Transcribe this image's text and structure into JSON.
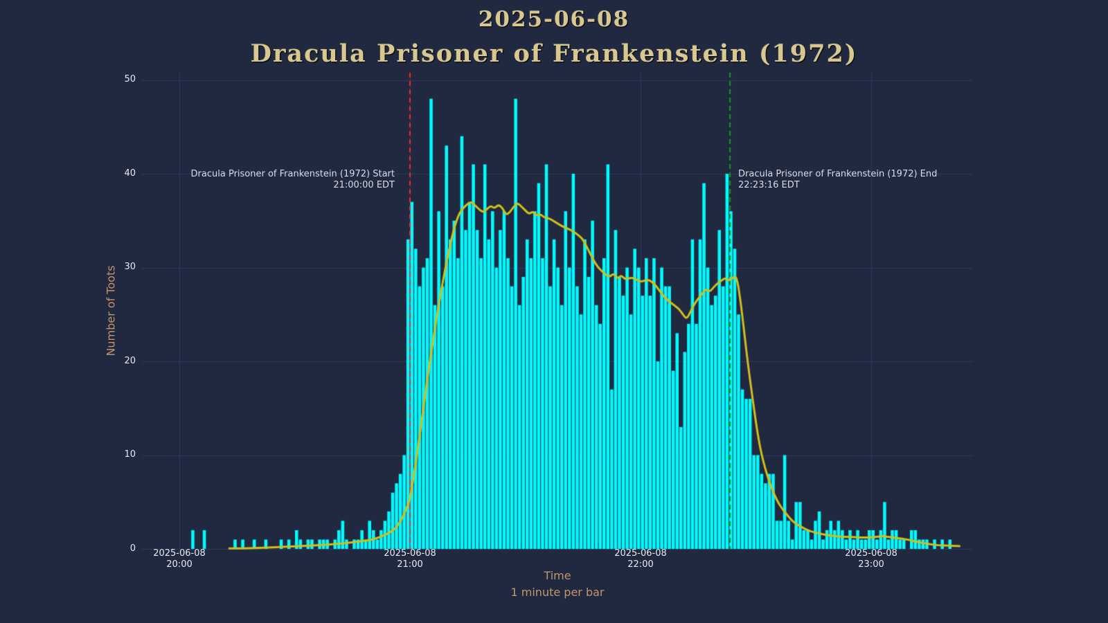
{
  "page": {
    "background": "#212940"
  },
  "title": {
    "line1": "2025-06-08",
    "line2": "Dracula Prisoner of Frankenstein (1972)",
    "color": "#d8c78e"
  },
  "colors": {
    "tick_text": "#e8eaee",
    "axis_label_text": "#c1966b",
    "annotation_text": "#d9dce4",
    "grid": "#2e3a5e",
    "background": "#212940"
  },
  "chart_data": {
    "type": "bar",
    "title": "2025-06-08 — Dracula Prisoner of Frankenstein (1972)",
    "xlabel": "Time",
    "xlabel_note": "1 minute per bar",
    "ylabel": "Number of Toots",
    "ylim": [
      0,
      50
    ],
    "yticks": [
      0,
      10,
      20,
      30,
      40,
      50
    ],
    "xticks": [
      {
        "date": "2025-06-08",
        "time": "20:00",
        "minute": 0
      },
      {
        "date": "2025-06-08",
        "time": "21:00",
        "minute": 60
      },
      {
        "date": "2025-06-08",
        "time": "22:00",
        "minute": 120
      },
      {
        "date": "2025-06-08",
        "time": "23:00",
        "minute": 180
      }
    ],
    "grid": true,
    "legend": false,
    "x_unit": "minutes after 2025-06-08 20:00 EDT",
    "bar_width_minutes": 1,
    "bar_color": "#00fbff",
    "bars": [
      [
        3,
        2
      ],
      [
        6,
        2
      ],
      [
        14,
        1
      ],
      [
        16,
        1
      ],
      [
        19,
        1
      ],
      [
        22,
        1
      ],
      [
        26,
        1
      ],
      [
        28,
        1
      ],
      [
        30,
        2
      ],
      [
        31,
        1
      ],
      [
        33,
        1
      ],
      [
        34,
        1
      ],
      [
        36,
        1
      ],
      [
        37,
        1
      ],
      [
        38,
        1
      ],
      [
        40,
        1
      ],
      [
        41,
        2
      ],
      [
        42,
        3
      ],
      [
        43,
        1
      ],
      [
        45,
        1
      ],
      [
        46,
        1
      ],
      [
        47,
        2
      ],
      [
        48,
        1
      ],
      [
        49,
        3
      ],
      [
        50,
        2
      ],
      [
        51,
        1
      ],
      [
        52,
        2
      ],
      [
        53,
        3
      ],
      [
        54,
        4
      ],
      [
        55,
        6
      ],
      [
        56,
        7
      ],
      [
        57,
        8
      ],
      [
        58,
        10
      ],
      [
        59,
        33
      ],
      [
        60,
        37
      ],
      [
        61,
        32
      ],
      [
        62,
        28
      ],
      [
        63,
        30
      ],
      [
        64,
        31
      ],
      [
        65,
        48
      ],
      [
        66,
        26
      ],
      [
        67,
        36
      ],
      [
        68,
        28
      ],
      [
        69,
        43
      ],
      [
        70,
        33
      ],
      [
        71,
        35
      ],
      [
        72,
        31
      ],
      [
        73,
        44
      ],
      [
        74,
        34
      ],
      [
        75,
        37
      ],
      [
        76,
        41
      ],
      [
        77,
        34
      ],
      [
        78,
        31
      ],
      [
        79,
        41
      ],
      [
        80,
        33
      ],
      [
        81,
        36
      ],
      [
        82,
        30
      ],
      [
        83,
        34
      ],
      [
        84,
        36
      ],
      [
        85,
        31
      ],
      [
        86,
        28
      ],
      [
        87,
        48
      ],
      [
        88,
        26
      ],
      [
        89,
        29
      ],
      [
        90,
        33
      ],
      [
        91,
        31
      ],
      [
        92,
        36
      ],
      [
        93,
        39
      ],
      [
        94,
        31
      ],
      [
        95,
        41
      ],
      [
        96,
        28
      ],
      [
        97,
        33
      ],
      [
        98,
        30
      ],
      [
        99,
        26
      ],
      [
        100,
        36
      ],
      [
        101,
        30
      ],
      [
        102,
        40
      ],
      [
        103,
        28
      ],
      [
        104,
        25
      ],
      [
        105,
        33
      ],
      [
        106,
        29
      ],
      [
        107,
        35
      ],
      [
        108,
        26
      ],
      [
        109,
        24
      ],
      [
        110,
        31
      ],
      [
        111,
        41
      ],
      [
        112,
        17
      ],
      [
        113,
        34
      ],
      [
        114,
        29
      ],
      [
        115,
        27
      ],
      [
        116,
        30
      ],
      [
        117,
        25
      ],
      [
        118,
        32
      ],
      [
        119,
        30
      ],
      [
        120,
        27
      ],
      [
        121,
        31
      ],
      [
        122,
        27
      ],
      [
        123,
        31
      ],
      [
        124,
        20
      ],
      [
        125,
        30
      ],
      [
        126,
        28
      ],
      [
        127,
        28
      ],
      [
        128,
        19
      ],
      [
        129,
        23
      ],
      [
        130,
        13
      ],
      [
        131,
        21
      ],
      [
        132,
        24
      ],
      [
        133,
        33
      ],
      [
        134,
        24
      ],
      [
        135,
        33
      ],
      [
        136,
        39
      ],
      [
        137,
        30
      ],
      [
        138,
        26
      ],
      [
        139,
        27
      ],
      [
        140,
        34
      ],
      [
        141,
        28
      ],
      [
        142,
        40
      ],
      [
        143,
        36
      ],
      [
        144,
        32
      ],
      [
        145,
        25
      ],
      [
        146,
        17
      ],
      [
        147,
        16
      ],
      [
        148,
        16
      ],
      [
        149,
        10
      ],
      [
        150,
        10
      ],
      [
        151,
        8
      ],
      [
        152,
        7
      ],
      [
        153,
        8
      ],
      [
        154,
        8
      ],
      [
        155,
        3
      ],
      [
        156,
        3
      ],
      [
        157,
        10
      ],
      [
        158,
        3
      ],
      [
        159,
        1
      ],
      [
        160,
        5
      ],
      [
        161,
        5
      ],
      [
        162,
        2
      ],
      [
        163,
        2
      ],
      [
        164,
        1
      ],
      [
        165,
        3
      ],
      [
        166,
        4
      ],
      [
        167,
        1
      ],
      [
        168,
        2
      ],
      [
        169,
        3
      ],
      [
        170,
        2
      ],
      [
        171,
        3
      ],
      [
        172,
        2
      ],
      [
        173,
        1
      ],
      [
        174,
        2
      ],
      [
        175,
        1
      ],
      [
        176,
        2
      ],
      [
        177,
        1
      ],
      [
        178,
        1
      ],
      [
        179,
        2
      ],
      [
        180,
        2
      ],
      [
        181,
        1
      ],
      [
        182,
        2
      ],
      [
        183,
        5
      ],
      [
        184,
        1
      ],
      [
        185,
        2
      ],
      [
        186,
        2
      ],
      [
        187,
        1
      ],
      [
        188,
        1
      ],
      [
        190,
        2
      ],
      [
        191,
        2
      ],
      [
        192,
        1
      ],
      [
        193,
        1
      ],
      [
        194,
        1
      ],
      [
        196,
        1
      ],
      [
        198,
        1
      ],
      [
        200,
        1
      ]
    ],
    "smoothed_line": {
      "label": "smoothed average",
      "color": "#d0bf1d",
      "points": [
        [
          13,
          0.05
        ],
        [
          16,
          0.05
        ],
        [
          20,
          0.1
        ],
        [
          24,
          0.15
        ],
        [
          28,
          0.25
        ],
        [
          32,
          0.3
        ],
        [
          36,
          0.4
        ],
        [
          40,
          0.5
        ],
        [
          43,
          0.6
        ],
        [
          46,
          0.75
        ],
        [
          49,
          0.9
        ],
        [
          51,
          1.1
        ],
        [
          53,
          1.4
        ],
        [
          55,
          1.8
        ],
        [
          56,
          2.1
        ],
        [
          57,
          2.6
        ],
        [
          58,
          3.3
        ],
        [
          59,
          4.2
        ],
        [
          60,
          5.3
        ],
        [
          61,
          7.8
        ],
        [
          62,
          10.5
        ],
        [
          63,
          13.5
        ],
        [
          64,
          16.5
        ],
        [
          65,
          19.5
        ],
        [
          66,
          22.2
        ],
        [
          67,
          24.8
        ],
        [
          68,
          27.2
        ],
        [
          69,
          29.5
        ],
        [
          70,
          31.5
        ],
        [
          71,
          33.4
        ],
        [
          72,
          34.9
        ],
        [
          73,
          35.9
        ],
        [
          74,
          36.4
        ],
        [
          75,
          36.8
        ],
        [
          76,
          37.0
        ],
        [
          77,
          36.6
        ],
        [
          78,
          36.2
        ],
        [
          79,
          35.9
        ],
        [
          80,
          36.2
        ],
        [
          81,
          36.6
        ],
        [
          82,
          36.3
        ],
        [
          83,
          36.7
        ],
        [
          84,
          36.4
        ],
        [
          85,
          35.6
        ],
        [
          86,
          35.9
        ],
        [
          87,
          36.5
        ],
        [
          88,
          36.9
        ],
        [
          89,
          36.5
        ],
        [
          90,
          36.1
        ],
        [
          91,
          35.7
        ],
        [
          92,
          36.0
        ],
        [
          93,
          35.5
        ],
        [
          94,
          35.7
        ],
        [
          95,
          35.3
        ],
        [
          96,
          35.3
        ],
        [
          98,
          34.8
        ],
        [
          100,
          34.3
        ],
        [
          102,
          34.0
        ],
        [
          104,
          33.4
        ],
        [
          105,
          33.0
        ],
        [
          106,
          32.2
        ],
        [
          107,
          31.4
        ],
        [
          108,
          30.6
        ],
        [
          109,
          30.0
        ],
        [
          110,
          29.6
        ],
        [
          111,
          29.2
        ],
        [
          112,
          29.0
        ],
        [
          113,
          29.4
        ],
        [
          114,
          28.8
        ],
        [
          115,
          29.2
        ],
        [
          116,
          28.7
        ],
        [
          118,
          29.0
        ],
        [
          120,
          28.4
        ],
        [
          122,
          28.8
        ],
        [
          124,
          28.1
        ],
        [
          126,
          26.9
        ],
        [
          128,
          26.2
        ],
        [
          130,
          25.6
        ],
        [
          131,
          25.0
        ],
        [
          132,
          24.5
        ],
        [
          133,
          25.3
        ],
        [
          134,
          26.1
        ],
        [
          135,
          26.7
        ],
        [
          136,
          27.2
        ],
        [
          137,
          27.7
        ],
        [
          138,
          27.4
        ],
        [
          139,
          27.9
        ],
        [
          140,
          28.3
        ],
        [
          141,
          28.6
        ],
        [
          142,
          28.9
        ],
        [
          143,
          28.6
        ],
        [
          144,
          28.9
        ],
        [
          145,
          29.1
        ],
        [
          146,
          26.5
        ],
        [
          147,
          23.0
        ],
        [
          148,
          19.5
        ],
        [
          149,
          16.5
        ],
        [
          150,
          13.5
        ],
        [
          151,
          11.0
        ],
        [
          152,
          9.2
        ],
        [
          153,
          7.8
        ],
        [
          154,
          6.6
        ],
        [
          155,
          5.6
        ],
        [
          156,
          4.8
        ],
        [
          157,
          4.2
        ],
        [
          158,
          3.7
        ],
        [
          159,
          3.2
        ],
        [
          160,
          2.8
        ],
        [
          162,
          2.3
        ],
        [
          164,
          1.9
        ],
        [
          166,
          1.7
        ],
        [
          168,
          1.5
        ],
        [
          170,
          1.4
        ],
        [
          172,
          1.3
        ],
        [
          174,
          1.3
        ],
        [
          176,
          1.25
        ],
        [
          178,
          1.2
        ],
        [
          180,
          1.25
        ],
        [
          182,
          1.3
        ],
        [
          183,
          1.4
        ],
        [
          184,
          1.3
        ],
        [
          186,
          1.2
        ],
        [
          188,
          1.1
        ],
        [
          190,
          0.95
        ],
        [
          192,
          0.75
        ],
        [
          194,
          0.6
        ],
        [
          196,
          0.45
        ],
        [
          198,
          0.38
        ],
        [
          200,
          0.35
        ],
        [
          202,
          0.33
        ],
        [
          203,
          0.3
        ]
      ]
    },
    "events": {
      "start": {
        "label_line1": "Dracula Prisoner of Frankenstein (1972) Start",
        "label_line2": "21:00:00 EDT",
        "minute": 60,
        "line_color": "#ff2020",
        "line_style": "dashed"
      },
      "end": {
        "label_line1": "Dracula Prisoner of Frankenstein (1972) End",
        "label_line2": "22:23:16 EDT",
        "minute": 143.27,
        "line_color": "#0f9e1a",
        "line_style": "dashed"
      }
    }
  }
}
